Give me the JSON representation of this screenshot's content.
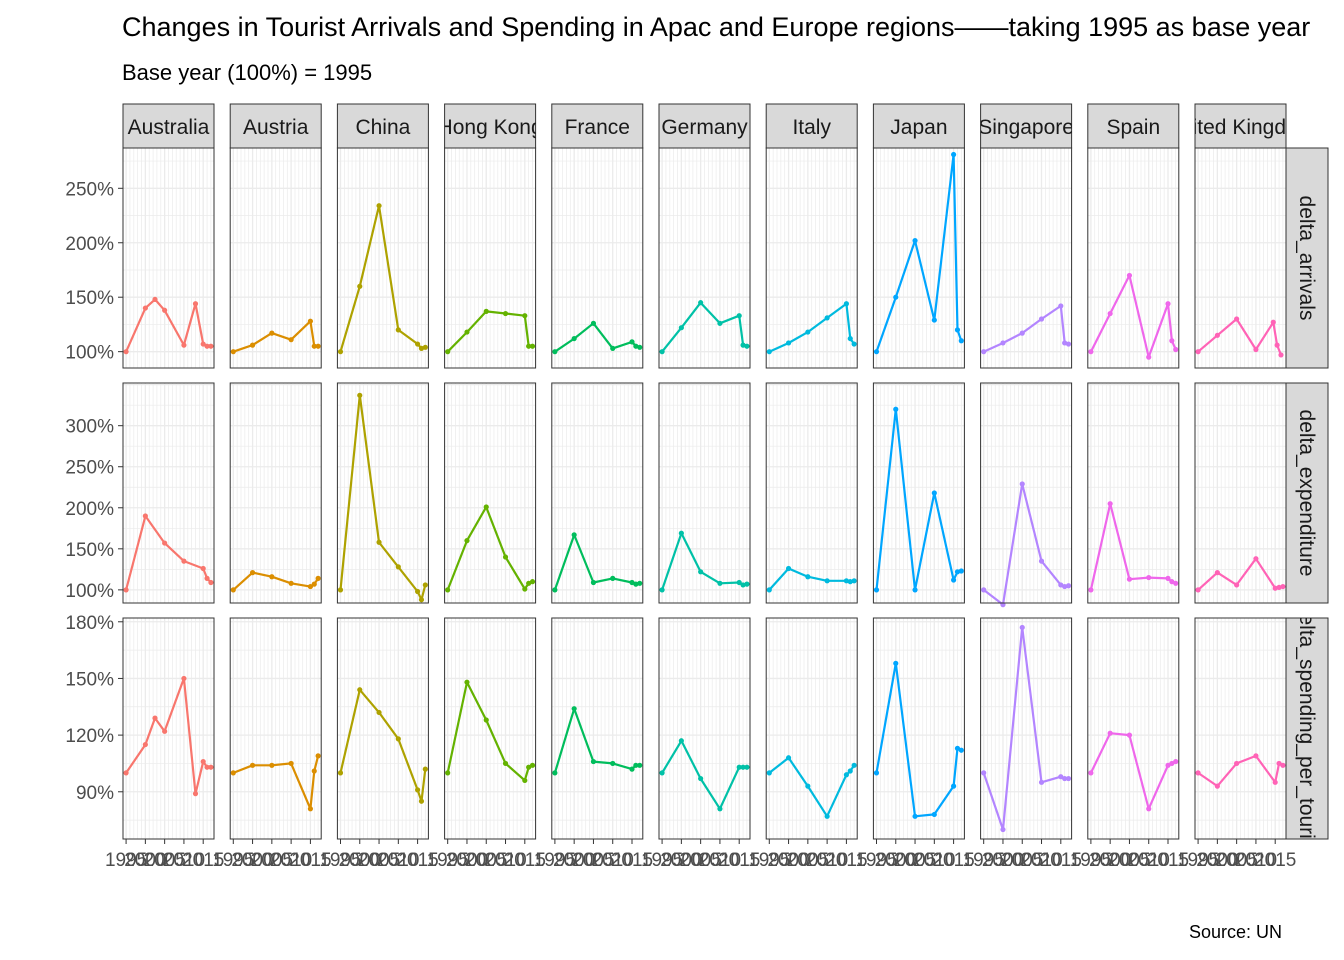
{
  "chart_data": {
    "type": "line",
    "title": "Changes in Tourist Arrivals and Spending in Apac and Europe regions——taking 1995 as base year",
    "subtitle": "Base year (100%) = 1995",
    "caption": "Source: UN",
    "xlabel": "",
    "ylabel": "",
    "x_ticks": [
      1995,
      2000,
      2005,
      2010,
      2015
    ],
    "xlim": [
      1994.2,
      2017.8
    ],
    "countries": [
      "Australia",
      "Austria",
      "China",
      "Hong Kong",
      "France",
      "Germany",
      "Italy",
      "Japan",
      "Singapore",
      "Spain",
      "United Kingdom"
    ],
    "colors": [
      "#F8766D",
      "#DB8E00",
      "#AEA200",
      "#64B200",
      "#00BD5C",
      "#00C1A7",
      "#00BADE",
      "#00A6FF",
      "#B385FF",
      "#EF67EB",
      "#FF63B6"
    ],
    "rows": [
      {
        "name": "delta_arrivals",
        "ylim": [
          0.85,
          2.87
        ],
        "ticks": [
          1.0,
          1.5,
          2.0,
          2.5
        ],
        "tick_labels": [
          "100%",
          "150%",
          "200%",
          "250%"
        ],
        "series": [
          {
            "x": [
              1995,
              2000,
              2002.5,
              2005,
              2010,
              2013,
              2015,
              2016,
              2017
            ],
            "y": [
              1.0,
              1.4,
              1.48,
              1.38,
              1.06,
              1.44,
              1.07,
              1.05,
              1.05
            ]
          },
          {
            "x": [
              1995,
              2000,
              2005,
              2010,
              2015,
              2016,
              2017
            ],
            "y": [
              1.0,
              1.06,
              1.17,
              1.11,
              1.28,
              1.05,
              1.05
            ]
          },
          {
            "x": [
              1995,
              2000,
              2005,
              2010,
              2015,
              2016,
              2017
            ],
            "y": [
              1.0,
              1.6,
              2.34,
              1.2,
              1.07,
              1.03,
              1.04
            ]
          },
          {
            "x": [
              1995,
              2000,
              2005,
              2010,
              2015,
              2016,
              2017
            ],
            "y": [
              1.0,
              1.18,
              1.37,
              1.35,
              1.33,
              1.05,
              1.05
            ]
          },
          {
            "x": [
              1995,
              2000,
              2005,
              2010,
              2015,
              2016,
              2017
            ],
            "y": [
              1.0,
              1.12,
              1.26,
              1.03,
              1.09,
              1.05,
              1.04
            ]
          },
          {
            "x": [
              1995,
              2000,
              2005,
              2010,
              2015,
              2016,
              2017
            ],
            "y": [
              1.0,
              1.22,
              1.45,
              1.26,
              1.33,
              1.06,
              1.05
            ]
          },
          {
            "x": [
              1995,
              2000,
              2005,
              2010,
              2015,
              2016,
              2017
            ],
            "y": [
              1.0,
              1.08,
              1.18,
              1.31,
              1.44,
              1.12,
              1.07
            ]
          },
          {
            "x": [
              1995,
              2000,
              2005,
              2010,
              2015,
              2016,
              2017
            ],
            "y": [
              1.0,
              1.5,
              2.02,
              1.29,
              2.81,
              1.2,
              1.1
            ]
          },
          {
            "x": [
              1995,
              2000,
              2005,
              2010,
              2015,
              2016,
              2017
            ],
            "y": [
              1.0,
              1.08,
              1.17,
              1.3,
              1.42,
              1.08,
              1.07
            ]
          },
          {
            "x": [
              1995,
              2000,
              2005,
              2010,
              2015,
              2016,
              2017
            ],
            "y": [
              1.0,
              1.35,
              1.7,
              0.95,
              1.44,
              1.1,
              1.02
            ]
          },
          {
            "x": [
              1995,
              2000,
              2005,
              2010,
              2014.5,
              2015.5,
              2016.5
            ],
            "y": [
              1.0,
              1.15,
              1.3,
              1.02,
              1.27,
              1.06,
              0.97
            ]
          }
        ]
      },
      {
        "name": "delta_expenditure",
        "ylim": [
          0.84,
          3.52
        ],
        "ticks": [
          1.0,
          1.5,
          2.0,
          2.5,
          3.0
        ],
        "tick_labels": [
          "100%",
          "150%",
          "200%",
          "250%",
          "300%"
        ],
        "series": [
          {
            "x": [
              1995,
              2000,
              2005,
              2010,
              2015,
              2016,
              2017
            ],
            "y": [
              1.0,
              1.9,
              1.57,
              1.35,
              1.26,
              1.14,
              1.09
            ]
          },
          {
            "x": [
              1995,
              2000,
              2005,
              2010,
              2015,
              2016,
              2017
            ],
            "y": [
              1.0,
              1.21,
              1.16,
              1.08,
              1.04,
              1.07,
              1.14
            ]
          },
          {
            "x": [
              1995,
              2000,
              2005,
              2010,
              2015,
              2016,
              2017
            ],
            "y": [
              1.0,
              3.37,
              1.58,
              1.28,
              0.98,
              0.88,
              1.06
            ]
          },
          {
            "x": [
              1995,
              2000,
              2005,
              2010,
              2015,
              2016,
              2017
            ],
            "y": [
              1.0,
              1.6,
              2.01,
              1.4,
              1.01,
              1.08,
              1.1
            ]
          },
          {
            "x": [
              1995,
              2000,
              2005,
              2010,
              2015,
              2016,
              2017
            ],
            "y": [
              1.0,
              1.67,
              1.09,
              1.14,
              1.09,
              1.07,
              1.08
            ]
          },
          {
            "x": [
              1995,
              2000,
              2005,
              2010,
              2015,
              2016,
              2017
            ],
            "y": [
              1.0,
              1.69,
              1.22,
              1.08,
              1.09,
              1.06,
              1.07
            ]
          },
          {
            "x": [
              1995,
              2000,
              2005,
              2010,
              2015,
              2016,
              2017
            ],
            "y": [
              1.0,
              1.26,
              1.16,
              1.11,
              1.11,
              1.1,
              1.11
            ]
          },
          {
            "x": [
              1995,
              2000,
              2005,
              2010,
              2015,
              2016,
              2017
            ],
            "y": [
              1.0,
              3.2,
              1.0,
              2.18,
              1.12,
              1.22,
              1.23
            ]
          },
          {
            "x": [
              1995,
              2000,
              2005,
              2010,
              2015,
              2016,
              2017
            ],
            "y": [
              1.0,
              0.82,
              2.29,
              1.35,
              1.06,
              1.04,
              1.05
            ]
          },
          {
            "x": [
              1995,
              2000,
              2005,
              2010,
              2015,
              2016,
              2017
            ],
            "y": [
              1.0,
              2.05,
              1.13,
              1.15,
              1.14,
              1.1,
              1.08
            ]
          },
          {
            "x": [
              1995,
              2000,
              2005,
              2010,
              2015,
              2016,
              2017
            ],
            "y": [
              1.0,
              1.21,
              1.06,
              1.38,
              1.02,
              1.03,
              1.04
            ]
          }
        ]
      },
      {
        "name": "delta_spending_per_tourist",
        "ylim": [
          0.65,
          1.82
        ],
        "ticks": [
          0.9,
          1.2,
          1.5,
          1.8
        ],
        "tick_labels": [
          "90%",
          "120%",
          "150%",
          "180%"
        ],
        "series": [
          {
            "x": [
              1995,
              2000,
              2002.5,
              2005,
              2010,
              2013,
              2015,
              2016,
              2017
            ],
            "y": [
              1.0,
              1.15,
              1.29,
              1.22,
              1.5,
              0.89,
              1.06,
              1.03,
              1.03
            ]
          },
          {
            "x": [
              1995,
              2000,
              2005,
              2010,
              2015,
              2016,
              2017
            ],
            "y": [
              1.0,
              1.04,
              1.04,
              1.05,
              0.81,
              1.01,
              1.09
            ]
          },
          {
            "x": [
              1995,
              2000,
              2005,
              2010,
              2015,
              2016,
              2017
            ],
            "y": [
              1.0,
              1.44,
              1.32,
              1.18,
              0.91,
              0.85,
              1.02
            ]
          },
          {
            "x": [
              1995,
              2000,
              2005,
              2010,
              2015,
              2016,
              2017
            ],
            "y": [
              1.0,
              1.48,
              1.28,
              1.05,
              0.96,
              1.03,
              1.04
            ]
          },
          {
            "x": [
              1995,
              2000,
              2005,
              2010,
              2015,
              2016,
              2017
            ],
            "y": [
              1.0,
              1.34,
              1.06,
              1.05,
              1.02,
              1.04,
              1.04
            ]
          },
          {
            "x": [
              1995,
              2000,
              2005,
              2010,
              2015,
              2016,
              2017
            ],
            "y": [
              1.0,
              1.17,
              0.97,
              0.81,
              1.03,
              1.03,
              1.03
            ]
          },
          {
            "x": [
              1995,
              2000,
              2005,
              2010,
              2015,
              2016,
              2017
            ],
            "y": [
              1.0,
              1.08,
              0.93,
              0.77,
              0.99,
              1.01,
              1.04
            ]
          },
          {
            "x": [
              1995,
              2000,
              2005,
              2010,
              2015,
              2016,
              2017
            ],
            "y": [
              1.0,
              1.58,
              0.77,
              0.78,
              0.93,
              1.13,
              1.12
            ]
          },
          {
            "x": [
              1995,
              2000,
              2005,
              2010,
              2015,
              2016,
              2017
            ],
            "y": [
              1.0,
              0.7,
              1.77,
              0.95,
              0.98,
              0.97,
              0.97
            ]
          },
          {
            "x": [
              1995,
              2000,
              2005,
              2010,
              2015,
              2016,
              2017
            ],
            "y": [
              1.0,
              1.21,
              1.2,
              0.81,
              1.04,
              1.05,
              1.06
            ]
          },
          {
            "x": [
              1995,
              2000,
              2005,
              2010,
              2015,
              2016,
              2017
            ],
            "y": [
              1.0,
              0.93,
              1.05,
              1.09,
              0.95,
              1.05,
              1.04
            ]
          }
        ]
      }
    ]
  }
}
